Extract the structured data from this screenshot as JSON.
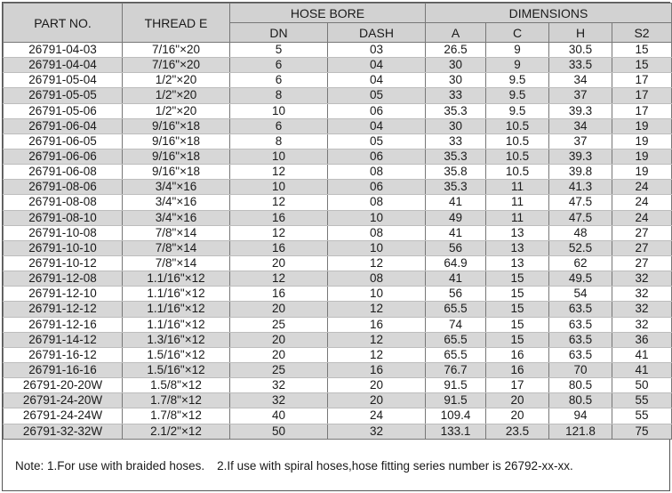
{
  "headers": {
    "part_no": "PART NO.",
    "thread_e": "THREAD E",
    "hose_bore": "HOSE BORE",
    "dimensions": "DIMENSIONS",
    "dn": "DN",
    "dash": "DASH",
    "a": "A",
    "c": "C",
    "h": "H",
    "s2": "S2"
  },
  "rows": [
    [
      "26791-04-03",
      "7/16\"×20",
      "5",
      "03",
      "26.5",
      "9",
      "30.5",
      "15"
    ],
    [
      "26791-04-04",
      "7/16\"×20",
      "6",
      "04",
      "30",
      "9",
      "33.5",
      "15"
    ],
    [
      "26791-05-04",
      "1/2\"×20",
      "6",
      "04",
      "30",
      "9.5",
      "34",
      "17"
    ],
    [
      "26791-05-05",
      "1/2\"×20",
      "8",
      "05",
      "33",
      "9.5",
      "37",
      "17"
    ],
    [
      "26791-05-06",
      "1/2\"×20",
      "10",
      "06",
      "35.3",
      "9.5",
      "39.3",
      "17"
    ],
    [
      "26791-06-04",
      "9/16\"×18",
      "6",
      "04",
      "30",
      "10.5",
      "34",
      "19"
    ],
    [
      "26791-06-05",
      "9/16\"×18",
      "8",
      "05",
      "33",
      "10.5",
      "37",
      "19"
    ],
    [
      "26791-06-06",
      "9/16\"×18",
      "10",
      "06",
      "35.3",
      "10.5",
      "39.3",
      "19"
    ],
    [
      "26791-06-08",
      "9/16\"×18",
      "12",
      "08",
      "35.8",
      "10.5",
      "39.8",
      "19"
    ],
    [
      "26791-08-06",
      "3/4\"×16",
      "10",
      "06",
      "35.3",
      "11",
      "41.3",
      "24"
    ],
    [
      "26791-08-08",
      "3/4\"×16",
      "12",
      "08",
      "41",
      "11",
      "47.5",
      "24"
    ],
    [
      "26791-08-10",
      "3/4\"×16",
      "16",
      "10",
      "49",
      "11",
      "47.5",
      "24"
    ],
    [
      "26791-10-08",
      "7/8\"×14",
      "12",
      "08",
      "41",
      "13",
      "48",
      "27"
    ],
    [
      "26791-10-10",
      "7/8\"×14",
      "16",
      "10",
      "56",
      "13",
      "52.5",
      "27"
    ],
    [
      "26791-10-12",
      "7/8\"×14",
      "20",
      "12",
      "64.9",
      "13",
      "62",
      "27"
    ],
    [
      "26791-12-08",
      "1.1/16\"×12",
      "12",
      "08",
      "41",
      "15",
      "49.5",
      "32"
    ],
    [
      "26791-12-10",
      "1.1/16\"×12",
      "16",
      "10",
      "56",
      "15",
      "54",
      "32"
    ],
    [
      "26791-12-12",
      "1.1/16\"×12",
      "20",
      "12",
      "65.5",
      "15",
      "63.5",
      "32"
    ],
    [
      "26791-12-16",
      "1.1/16\"×12",
      "25",
      "16",
      "74",
      "15",
      "63.5",
      "32"
    ],
    [
      "26791-14-12",
      "1.3/16\"×12",
      "20",
      "12",
      "65.5",
      "15",
      "63.5",
      "36"
    ],
    [
      "26791-16-12",
      "1.5/16\"×12",
      "20",
      "12",
      "65.5",
      "16",
      "63.5",
      "41"
    ],
    [
      "26791-16-16",
      "1.5/16\"×12",
      "25",
      "16",
      "76.7",
      "16",
      "70",
      "41"
    ],
    [
      "26791-20-20W",
      "1.5/8\"×12",
      "32",
      "20",
      "91.5",
      "17",
      "80.5",
      "50"
    ],
    [
      "26791-24-20W",
      "1.7/8\"×12",
      "32",
      "20",
      "91.5",
      "20",
      "80.5",
      "55"
    ],
    [
      "26791-24-24W",
      "1.7/8\"×12",
      "40",
      "24",
      "109.4",
      "20",
      "94",
      "55"
    ],
    [
      "26791-32-32W",
      "2.1/2\"×12",
      "50",
      "32",
      "133.1",
      "23.5",
      "121.8",
      "75"
    ]
  ],
  "note": {
    "part1": "Note: 1.For use with braided hoses.",
    "part2": "2.If use with spiral hoses,hose fitting series number is 26792-xx-xx."
  }
}
